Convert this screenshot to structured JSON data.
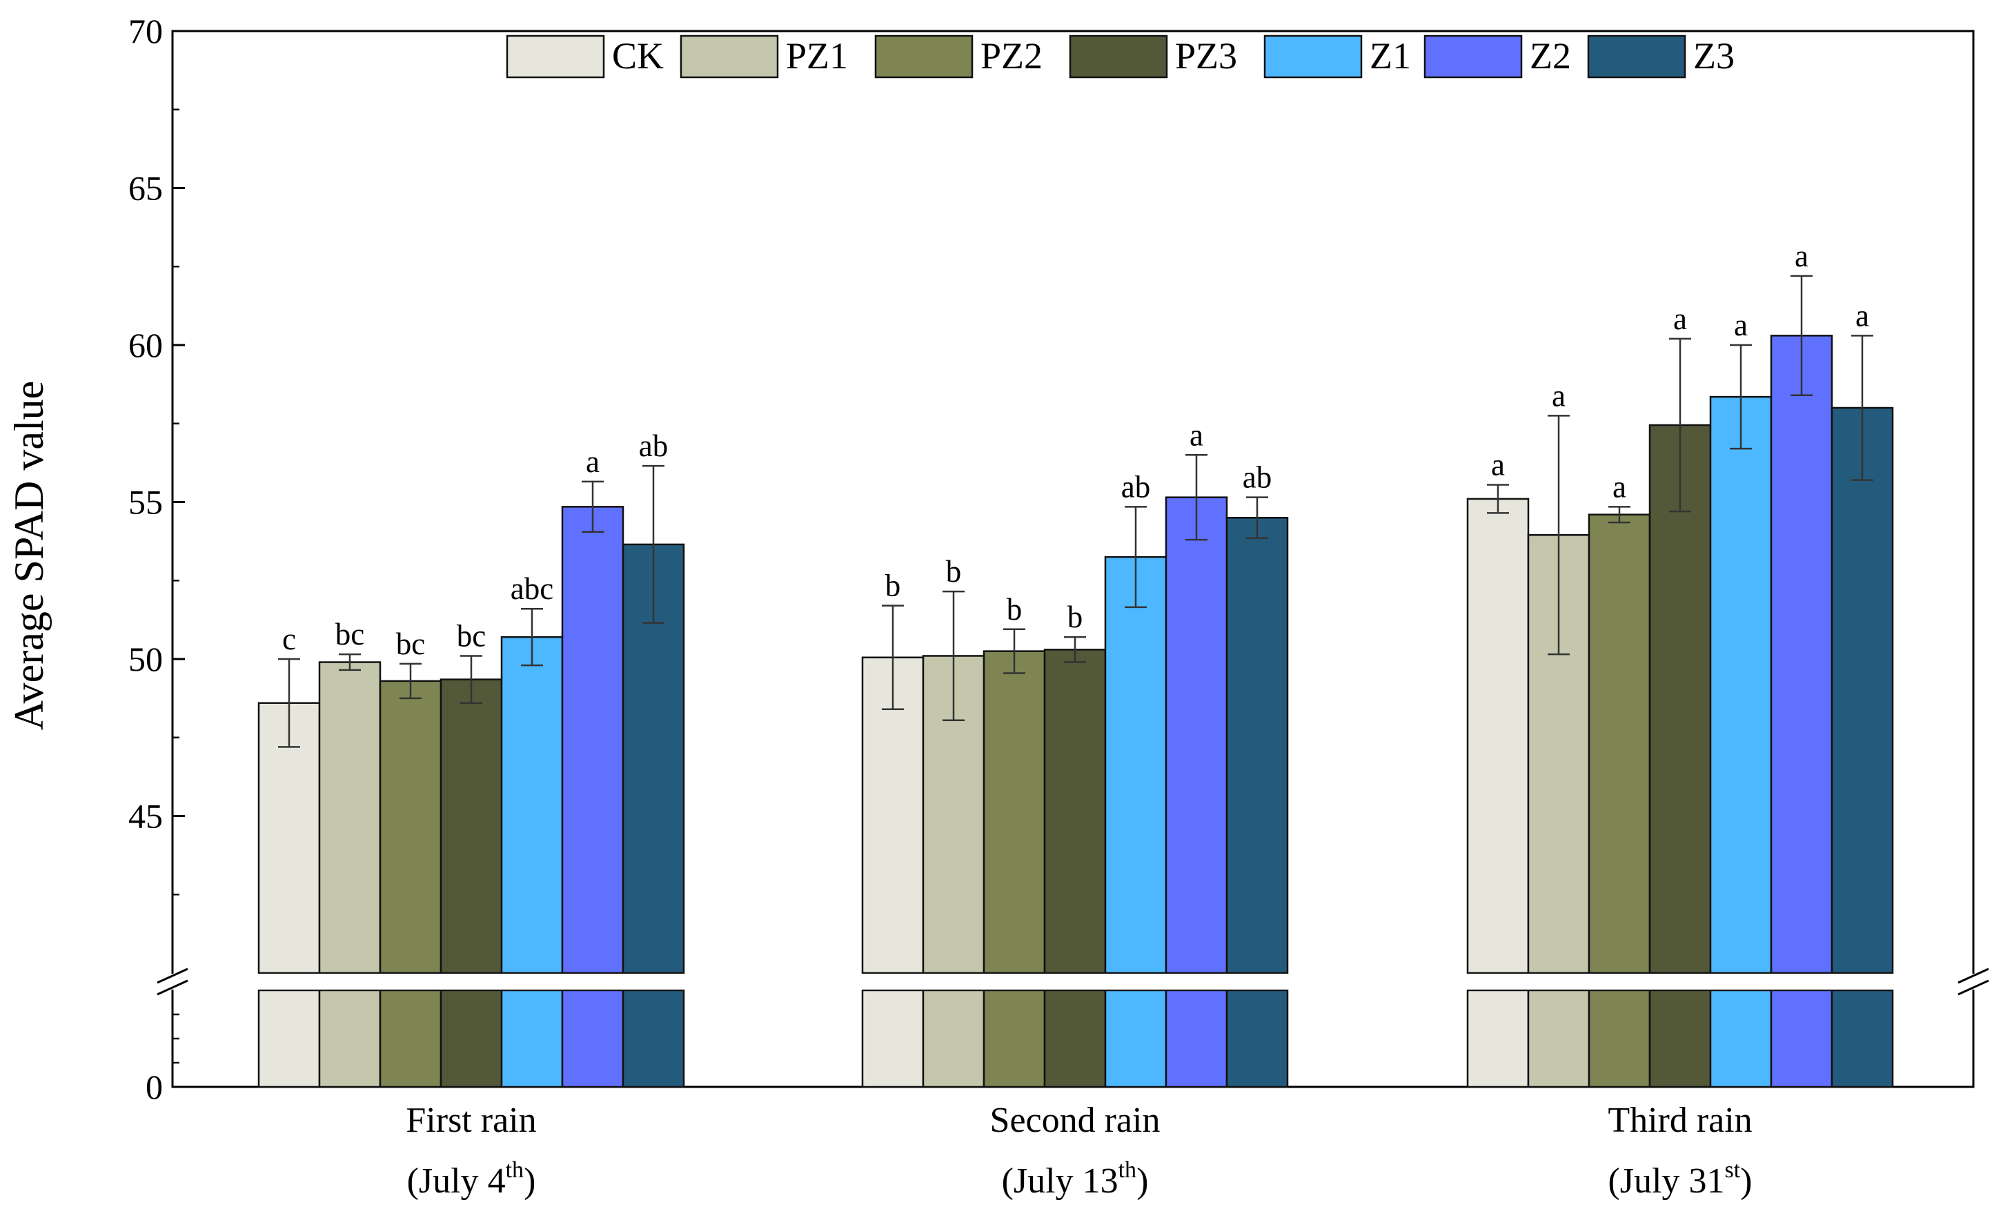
{
  "chart_data": {
    "type": "bar",
    "ylabel": "Average SPAD value",
    "ylim_upper": [
      40,
      70
    ],
    "ylim_lower": [
      0,
      2
    ],
    "yticks_upper": [
      45,
      50,
      55,
      60,
      65,
      70
    ],
    "yticks_lower": [
      0
    ],
    "axis_break": true,
    "legend_position": "top-center",
    "categories": [
      {
        "line1": "First rain",
        "line2_prefix": "(July 4",
        "line2_sup": "th",
        "line2_suffix": ")"
      },
      {
        "line1": "Second rain",
        "line2_prefix": "(July 13",
        "line2_sup": "th",
        "line2_suffix": ")"
      },
      {
        "line1": "Third rain",
        "line2_prefix": "(July 31",
        "line2_sup": "st",
        "line2_suffix": ")"
      }
    ],
    "series": [
      {
        "name": "CK",
        "color": "#e6e6dc",
        "values": [
          48.6,
          50.05,
          55.1
        ],
        "errors": [
          1.4,
          1.65,
          0.45
        ],
        "labels": [
          "c",
          "b",
          "a"
        ]
      },
      {
        "name": "PZ1",
        "color": "#c5c7ad",
        "values": [
          49.9,
          50.1,
          53.95
        ],
        "errors": [
          0.25,
          2.05,
          3.8
        ],
        "labels": [
          "bc",
          "b",
          "a"
        ]
      },
      {
        "name": "PZ2",
        "color": "#7e8553",
        "values": [
          49.3,
          50.25,
          54.6
        ],
        "errors": [
          0.55,
          0.7,
          0.25
        ],
        "labels": [
          "bc",
          "b",
          "a"
        ]
      },
      {
        "name": "PZ3",
        "color": "#535838",
        "values": [
          49.35,
          50.3,
          57.45
        ],
        "errors": [
          0.75,
          0.4,
          2.75
        ],
        "labels": [
          "bc",
          "b",
          "a"
        ]
      },
      {
        "name": "Z1",
        "color": "#4db8ff",
        "values": [
          50.7,
          53.25,
          58.35
        ],
        "errors": [
          0.9,
          1.6,
          1.65
        ],
        "labels": [
          "abc",
          "ab",
          "a"
        ]
      },
      {
        "name": "Z2",
        "color": "#6070ff",
        "values": [
          54.85,
          55.15,
          60.3
        ],
        "errors": [
          0.8,
          1.35,
          1.9
        ],
        "labels": [
          "a",
          "a",
          "a"
        ]
      },
      {
        "name": "Z3",
        "color": "#245b7c",
        "values": [
          53.65,
          54.5,
          58.0
        ],
        "errors": [
          2.5,
          0.65,
          2.3
        ],
        "labels": [
          "ab",
          "ab",
          "a"
        ]
      }
    ]
  }
}
